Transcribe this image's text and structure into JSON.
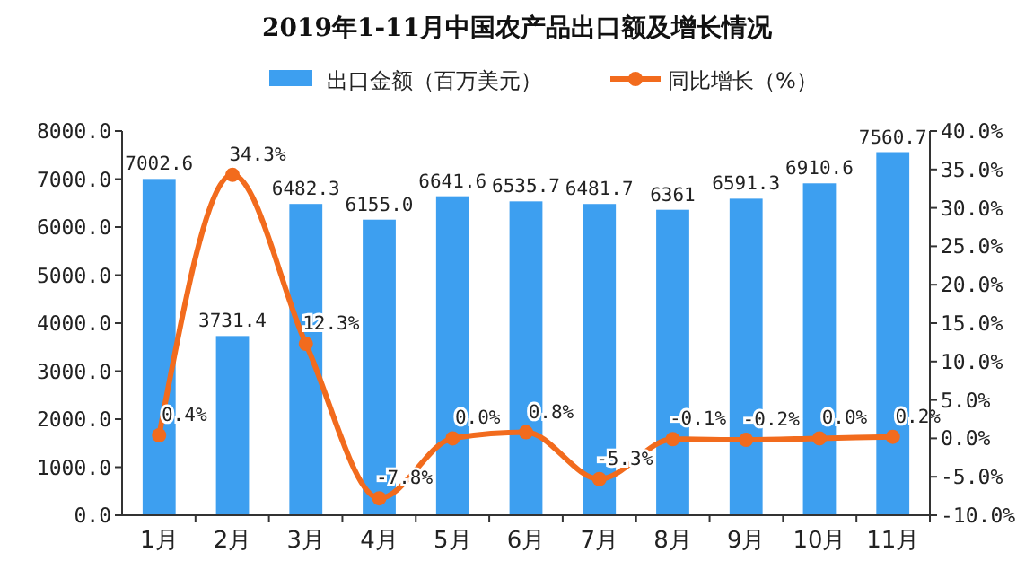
{
  "chart_data": {
    "type": "bar",
    "title": "2019年1-11月中国农产品出口额及增长情况",
    "categories": [
      "1月",
      "2月",
      "3月",
      "4月",
      "5月",
      "6月",
      "7月",
      "8月",
      "9月",
      "10月",
      "11月"
    ],
    "series": [
      {
        "name": "出口金额（百万美元）",
        "color": "#3d9ff0",
        "values": [
          7002.6,
          3731.4,
          6482.3,
          6155.0,
          6641.6,
          6535.7,
          6481.7,
          6361,
          6591.3,
          6910.6,
          7560.7
        ],
        "value_labels": [
          "7002.6",
          "3731.4",
          "6482.3",
          "6155.0",
          "6641.6",
          "6535.7",
          "6481.7",
          "6361",
          "6591.3",
          "6910.6",
          "7560.7"
        ]
      },
      {
        "name": "同比增长（%）",
        "type": "line",
        "axis": "y2",
        "color": "#f26b1d",
        "values": [
          0.4,
          34.3,
          12.3,
          -7.8,
          0.0,
          0.8,
          -5.3,
          -0.1,
          -0.2,
          0.0,
          0.2
        ],
        "value_labels": [
          "0.4%",
          "34.3%",
          "12.3%",
          "-7.8%",
          "0.0%",
          "0.8%",
          "-5.3%",
          "-0.1%",
          "-0.2%",
          "0.0%",
          "0.2%"
        ]
      }
    ],
    "ylim": [
      0,
      8000
    ],
    "yticks": [
      {
        "value": 0,
        "label": "0.0"
      },
      {
        "value": 1000,
        "label": "1000.0"
      },
      {
        "value": 2000,
        "label": "2000.0"
      },
      {
        "value": 3000,
        "label": "3000.0"
      },
      {
        "value": 4000,
        "label": "4000.0"
      },
      {
        "value": 5000,
        "label": "5000.0"
      },
      {
        "value": 6000,
        "label": "6000.0"
      },
      {
        "value": 7000,
        "label": "7000.0"
      },
      {
        "value": 8000,
        "label": "8000.0"
      }
    ],
    "y2lim": [
      -10,
      40
    ],
    "y2ticks": [
      {
        "value": -10,
        "label": "-10.0%"
      },
      {
        "value": -5,
        "label": "-5.0%"
      },
      {
        "value": 0,
        "label": "0.0%"
      },
      {
        "value": 5,
        "label": "5.0%"
      },
      {
        "value": 10,
        "label": "10.0%"
      },
      {
        "value": 15,
        "label": "15.0%"
      },
      {
        "value": 20,
        "label": "20.0%"
      },
      {
        "value": 25,
        "label": "25.0%"
      },
      {
        "value": 30,
        "label": "30.0%"
      },
      {
        "value": 35,
        "label": "35.0%"
      },
      {
        "value": 40,
        "label": "40.0%"
      }
    ],
    "legend": "top",
    "grid": false,
    "marker": "circle",
    "line_style": "solid"
  }
}
